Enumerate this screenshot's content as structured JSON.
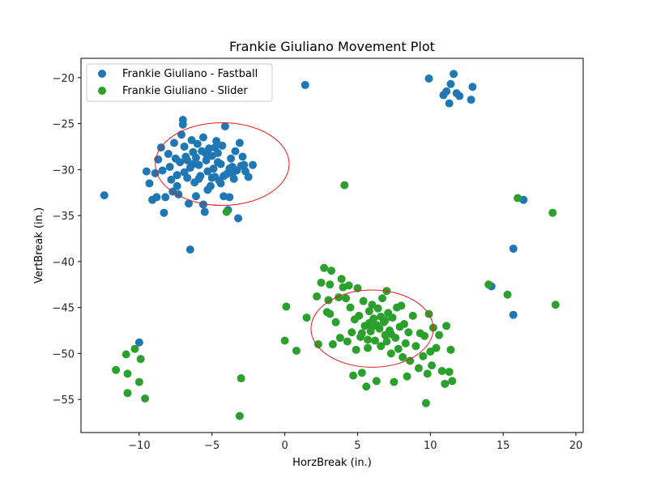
{
  "chart_data": {
    "type": "scatter",
    "title": "Frankie Giuliano Movement Plot",
    "xlabel": "HorzBreak (in.)",
    "ylabel": "VertBreak (in.)",
    "xlim": [
      -14,
      20.5
    ],
    "ylim": [
      -58.6,
      -17.9
    ],
    "xticks": [
      -10,
      -5,
      0,
      5,
      10,
      15,
      20
    ],
    "yticks": [
      -55,
      -50,
      -45,
      -40,
      -35,
      -30,
      -25,
      -20
    ],
    "xtick_labels": [
      "−10",
      "−5",
      "0",
      "5",
      "10",
      "15",
      "20"
    ],
    "ytick_labels": [
      "−55",
      "−50",
      "−45",
      "−40",
      "−35",
      "−30",
      "−25",
      "−20"
    ],
    "legend_position": "top-left",
    "grid": false,
    "series": [
      {
        "name": "Frankie Giuliano - Fastball",
        "color": "#1f77b4",
        "points": [
          [
            -12.4,
            -32.8
          ],
          [
            -10.0,
            -48.8
          ],
          [
            -9.5,
            -30.2
          ],
          [
            -9.3,
            -31.5
          ],
          [
            -9.1,
            -33.3
          ],
          [
            -8.9,
            -30.4
          ],
          [
            -8.8,
            -33.0
          ],
          [
            -8.7,
            -28.9
          ],
          [
            -8.5,
            -27.6
          ],
          [
            -8.4,
            -30.1
          ],
          [
            -8.3,
            -34.7
          ],
          [
            -8.2,
            -33.0
          ],
          [
            -8.0,
            -28.3
          ],
          [
            -7.9,
            -29.7
          ],
          [
            -7.8,
            -31.1
          ],
          [
            -7.7,
            -32.4
          ],
          [
            -7.6,
            -27.1
          ],
          [
            -7.5,
            -28.8
          ],
          [
            -7.4,
            -30.6
          ],
          [
            -7.3,
            -32.7
          ],
          [
            -7.2,
            -29.2
          ],
          [
            -7.1,
            -26.2
          ],
          [
            -7.0,
            -24.6
          ],
          [
            -7.0,
            -25.1
          ],
          [
            -6.9,
            -27.5
          ],
          [
            -6.8,
            -28.6
          ],
          [
            -6.7,
            -30.9
          ],
          [
            -6.6,
            -33.7
          ],
          [
            -6.5,
            -29.8
          ],
          [
            -6.4,
            -26.8
          ],
          [
            -6.5,
            -38.7
          ],
          [
            -6.3,
            -28.1
          ],
          [
            -6.2,
            -31.4
          ],
          [
            -6.1,
            -32.9
          ],
          [
            -6.0,
            -27.2
          ],
          [
            -5.9,
            -29.5
          ],
          [
            -5.8,
            -30.7
          ],
          [
            -5.7,
            -28.0
          ],
          [
            -5.6,
            -26.5
          ],
          [
            -5.6,
            -33.8
          ],
          [
            -5.5,
            -34.6
          ],
          [
            -5.4,
            -29.0
          ],
          [
            -5.3,
            -30.2
          ],
          [
            -5.2,
            -27.7
          ],
          [
            -5.1,
            -31.8
          ],
          [
            -5.0,
            -28.5
          ],
          [
            -4.9,
            -29.9
          ],
          [
            -4.8,
            -30.8
          ],
          [
            -4.7,
            -26.9
          ],
          [
            -4.6,
            -28.2
          ],
          [
            -4.5,
            -31.2
          ],
          [
            -4.4,
            -29.4
          ],
          [
            -4.3,
            -27.4
          ],
          [
            -4.2,
            -32.9
          ],
          [
            -4.1,
            -25.3
          ],
          [
            -4.0,
            -30.5
          ],
          [
            -3.9,
            -34.4
          ],
          [
            -3.8,
            -33.0
          ],
          [
            -3.7,
            -28.8
          ],
          [
            -3.6,
            -29.7
          ],
          [
            -3.5,
            -31.0
          ],
          [
            -3.4,
            -28.0
          ],
          [
            -3.3,
            -30.1
          ],
          [
            -3.2,
            -35.3
          ],
          [
            -3.1,
            -27.1
          ],
          [
            -3.0,
            -29.6
          ],
          [
            -2.9,
            -28.6
          ],
          [
            -2.8,
            -29.5
          ],
          [
            -2.7,
            -30.2
          ],
          [
            -2.5,
            -30.8
          ],
          [
            -2.2,
            -29.5
          ],
          [
            -6.9,
            -30.3
          ],
          [
            -6.3,
            -29.4
          ],
          [
            -5.9,
            -31.0
          ],
          [
            -5.4,
            -28.3
          ],
          [
            -5.0,
            -30.9
          ],
          [
            -4.6,
            -29.2
          ],
          [
            -4.2,
            -30.7
          ],
          [
            -3.8,
            -29.9
          ],
          [
            -6.1,
            -28.7
          ],
          [
            -5.3,
            -32.2
          ],
          [
            -4.8,
            -27.6
          ],
          [
            -4.4,
            -31.5
          ],
          [
            -3.6,
            -30.4
          ],
          [
            -6.7,
            -29.0
          ],
          [
            -7.4,
            -31.8
          ],
          [
            1.4,
            -20.8
          ],
          [
            9.9,
            -20.1
          ],
          [
            10.9,
            -21.9
          ],
          [
            11.1,
            -21.5
          ],
          [
            11.3,
            -22.8
          ],
          [
            11.4,
            -20.7
          ],
          [
            11.6,
            -19.6
          ],
          [
            11.8,
            -21.7
          ],
          [
            12.0,
            -22.0
          ],
          [
            12.8,
            -22.4
          ],
          [
            12.9,
            -21.0
          ],
          [
            14.2,
            -42.7
          ],
          [
            15.7,
            -38.6
          ],
          [
            15.7,
            -45.8
          ],
          [
            16.4,
            -33.3
          ]
        ]
      },
      {
        "name": "Frankie Giuliano - Slider",
        "color": "#2ca02c",
        "points": [
          [
            -11.6,
            -51.8
          ],
          [
            -10.9,
            -50.1
          ],
          [
            -10.8,
            -54.3
          ],
          [
            -10.8,
            -52.2
          ],
          [
            -10.3,
            -49.5
          ],
          [
            -10.0,
            -53.1
          ],
          [
            -9.9,
            -50.6
          ],
          [
            -9.6,
            -54.9
          ],
          [
            -4.0,
            -34.6
          ],
          [
            -3.1,
            -56.8
          ],
          [
            -3.0,
            -52.7
          ],
          [
            0.0,
            -48.6
          ],
          [
            0.1,
            -44.9
          ],
          [
            0.8,
            -49.7
          ],
          [
            1.5,
            -46.1
          ],
          [
            2.2,
            -43.8
          ],
          [
            2.3,
            -49.0
          ],
          [
            2.5,
            -42.3
          ],
          [
            2.7,
            -40.7
          ],
          [
            2.9,
            -45.5
          ],
          [
            3.0,
            -44.2
          ],
          [
            3.1,
            -45.7
          ],
          [
            3.1,
            -42.5
          ],
          [
            3.2,
            -41.0
          ],
          [
            3.3,
            -49.0
          ],
          [
            3.5,
            -46.6
          ],
          [
            3.7,
            -43.9
          ],
          [
            3.8,
            -48.3
          ],
          [
            3.9,
            -41.9
          ],
          [
            4.0,
            -42.8
          ],
          [
            4.1,
            -31.7
          ],
          [
            4.2,
            -44.0
          ],
          [
            4.3,
            -48.7
          ],
          [
            4.4,
            -42.6
          ],
          [
            4.5,
            -45.0
          ],
          [
            4.6,
            -47.7
          ],
          [
            4.7,
            -52.4
          ],
          [
            4.8,
            -46.3
          ],
          [
            4.9,
            -49.6
          ],
          [
            5.0,
            -42.9
          ],
          [
            5.1,
            -45.9
          ],
          [
            5.2,
            -48.2
          ],
          [
            5.3,
            -52.1
          ],
          [
            5.4,
            -44.3
          ],
          [
            5.5,
            -47.0
          ],
          [
            5.6,
            -53.6
          ],
          [
            5.7,
            -49.4
          ],
          [
            5.8,
            -45.4
          ],
          [
            5.9,
            -47.6
          ],
          [
            6.0,
            -44.7
          ],
          [
            6.1,
            -46.2
          ],
          [
            6.2,
            -48.6
          ],
          [
            6.3,
            -53.0
          ],
          [
            6.4,
            -45.1
          ],
          [
            6.5,
            -47.3
          ],
          [
            6.6,
            -49.2
          ],
          [
            6.7,
            -44.0
          ],
          [
            6.8,
            -46.6
          ],
          [
            6.9,
            -48.0
          ],
          [
            7.0,
            -43.2
          ],
          [
            7.1,
            -45.6
          ],
          [
            7.2,
            -47.5
          ],
          [
            7.3,
            -50.0
          ],
          [
            7.4,
            -46.1
          ],
          [
            7.5,
            -53.1
          ],
          [
            7.6,
            -48.3
          ],
          [
            7.7,
            -45.0
          ],
          [
            7.8,
            -49.5
          ],
          [
            7.9,
            -47.1
          ],
          [
            8.0,
            -44.8
          ],
          [
            8.1,
            -50.4
          ],
          [
            8.2,
            -46.8
          ],
          [
            8.3,
            -48.9
          ],
          [
            8.4,
            -52.5
          ],
          [
            8.5,
            -47.7
          ],
          [
            8.6,
            -50.8
          ],
          [
            8.8,
            -45.9
          ],
          [
            9.0,
            -49.2
          ],
          [
            9.2,
            -51.6
          ],
          [
            9.3,
            -47.8
          ],
          [
            9.5,
            -50.3
          ],
          [
            9.6,
            -48.1
          ],
          [
            9.7,
            -55.4
          ],
          [
            9.8,
            -52.2
          ],
          [
            9.9,
            -45.7
          ],
          [
            10.0,
            -49.8
          ],
          [
            10.1,
            -51.3
          ],
          [
            10.2,
            -47.2
          ],
          [
            10.4,
            -49.4
          ],
          [
            10.6,
            -48.0
          ],
          [
            10.8,
            -51.9
          ],
          [
            11.0,
            -53.3
          ],
          [
            11.1,
            -47.0
          ],
          [
            11.3,
            -52.0
          ],
          [
            11.4,
            -49.6
          ],
          [
            11.5,
            -53.0
          ],
          [
            14.0,
            -42.5
          ],
          [
            15.3,
            -43.6
          ],
          [
            16.0,
            -33.1
          ],
          [
            18.4,
            -34.7
          ],
          [
            18.6,
            -44.7
          ],
          [
            5.3,
            -47.8
          ],
          [
            6.0,
            -47.1
          ],
          [
            6.6,
            -46.0
          ],
          [
            7.3,
            -47.9
          ],
          [
            5.7,
            -48.5
          ],
          [
            6.3,
            -46.9
          ],
          [
            7.0,
            -48.7
          ],
          [
            6.9,
            -46.4
          ],
          [
            5.8,
            -46.7
          ]
        ]
      }
    ],
    "ellipses": [
      {
        "center": [
          -4.3,
          -29.4
        ],
        "semi_axes": [
          4.6,
          4.5
        ],
        "color": "#e41a1c"
      },
      {
        "center": [
          6.0,
          -47.3
        ],
        "semi_axes": [
          4.2,
          4.2
        ],
        "color": "#e41a1c"
      }
    ]
  }
}
